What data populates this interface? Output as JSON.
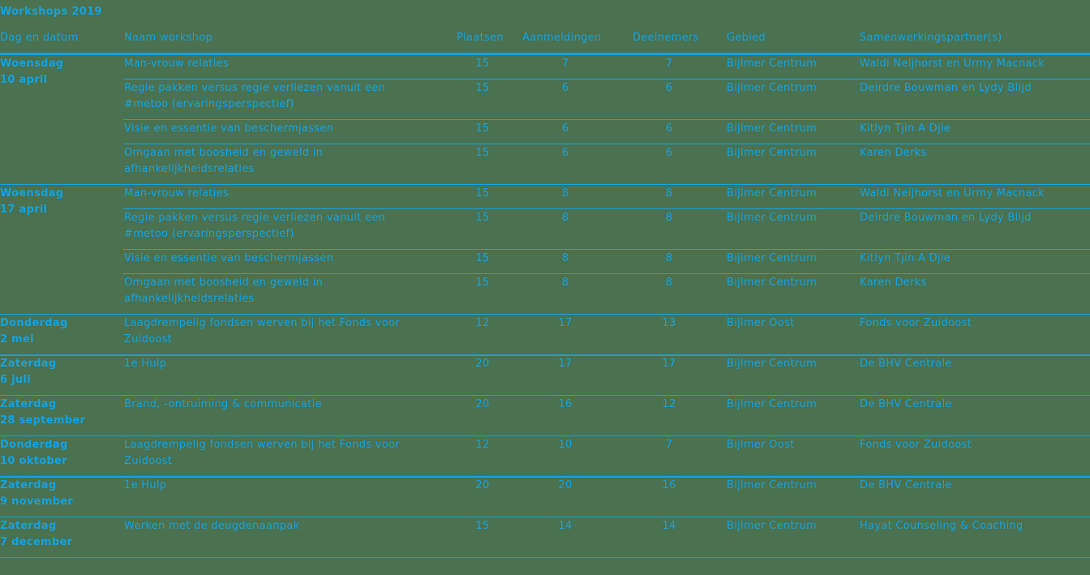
{
  "title": "Workshops 2019",
  "columns": [
    "Dag en datum",
    "Naam workshop",
    "Plaatsen",
    "Aanmeldingen",
    "Deelnemers",
    "Gebied",
    "Samenwerkingspartner(s)"
  ],
  "accent_color": "#12a3e3",
  "background_color": "#4a7150",
  "groups": [
    {
      "day": "Woensdag",
      "date": "10 april",
      "rows": [
        {
          "name": "Man-vrouw relaties",
          "plaatsen": "15",
          "aanmeldingen": "7",
          "deelnemers": "7",
          "gebied": "Bijlmer Centrum",
          "partner": "Waldi Neijhorst en Urmy Macnack"
        },
        {
          "name": "Regie pakken versus regie verliezen vanuit een #metoo (ervaringsperspectief)",
          "plaatsen": "15",
          "aanmeldingen": "6",
          "deelnemers": "6",
          "gebied": "Bijlmer Centrum",
          "partner": "Deirdre Bouwman en Lydy Blijd"
        },
        {
          "name": "Visie en essentie van beschermjassen",
          "plaatsen": "15",
          "aanmeldingen": "6",
          "deelnemers": "6",
          "gebied": "Bijlmer Centrum",
          "partner": "Kitlyn Tjin A Djie"
        },
        {
          "name": "Omgaan met boosheid en geweld in afhankelijkheidsrelaties",
          "plaatsen": "15",
          "aanmeldingen": "6",
          "deelnemers": "6",
          "gebied": "Bijlmer Centrum",
          "partner": "Karen Derks"
        }
      ]
    },
    {
      "day": "Woensdag",
      "date": "17 april",
      "rows": [
        {
          "name": "Man-vrouw relaties",
          "plaatsen": "15",
          "aanmeldingen": "8",
          "deelnemers": "8",
          "gebied": "Bijlmer Centrum",
          "partner": "Waldi Neijhorst en Urmy Macnack"
        },
        {
          "name": "Regie pakken versus regie verliezen vanuit een #metoo (ervaringsperspectief)",
          "plaatsen": "15",
          "aanmeldingen": "8",
          "deelnemers": "8",
          "gebied": "Bijlmer Centrum",
          "partner": "Deirdre Bouwman en Lydy Blijd"
        },
        {
          "name": "Visie en essentie van beschermjassen",
          "plaatsen": "15",
          "aanmeldingen": "8",
          "deelnemers": "8",
          "gebied": "Bijlmer Centrum",
          "partner": "Kitlyn Tjin A Djie"
        },
        {
          "name": "Omgaan met boosheid en geweld in afhankelijkheidsrelaties",
          "plaatsen": "15",
          "aanmeldingen": "8",
          "deelnemers": "8",
          "gebied": "Bijlmer Centrum",
          "partner": "Karen Derks"
        }
      ]
    },
    {
      "day": "Donderdag",
      "date": "2 mei",
      "rows": [
        {
          "name": "Laagdrempelig fondsen werven bij het Fonds voor Zuidoost",
          "plaatsen": "12",
          "aanmeldingen": "17",
          "deelnemers": "13",
          "gebied": "Bijlmer Oost",
          "partner": "Fonds voor Zuidoost"
        }
      ]
    },
    {
      "day": "Zaterdag",
      "date": "6 juli",
      "rows": [
        {
          "name": "1e Hulp",
          "plaatsen": "20",
          "aanmeldingen": "17",
          "deelnemers": "17",
          "gebied": "Bijlmer Centrum",
          "partner": "De BHV Centrale"
        }
      ]
    },
    {
      "day": "Zaterdag",
      "date": "28 september",
      "rows": [
        {
          "name": "Brand, -ontruiming & communicatie",
          "plaatsen": "20",
          "aanmeldingen": "16",
          "deelnemers": "12",
          "gebied": "Bijlmer Centrum",
          "partner": "De BHV Centrale"
        }
      ]
    },
    {
      "day": "Donderdag",
      "date": "10 oktober",
      "rows": [
        {
          "name": "Laagdrempelig fondsen werven bij het Fonds voor Zuidoost",
          "plaatsen": "12",
          "aanmeldingen": "10",
          "deelnemers": "7",
          "gebied": "Bijlmer Oost",
          "partner": "Fonds voor Zuidoost"
        }
      ]
    },
    {
      "day": "Zaterdag",
      "date": "9 november",
      "rows": [
        {
          "name": "1e Hulp",
          "plaatsen": "20",
          "aanmeldingen": "20",
          "deelnemers": "16",
          "gebied": "Bijlmer Centrum",
          "partner": "De BHV Centrale"
        }
      ]
    },
    {
      "day": "Zaterdag",
      "date": "7 december",
      "rows": [
        {
          "name": "Werken met de deugdenaanpak",
          "plaatsen": "15",
          "aanmeldingen": "14",
          "deelnemers": "14",
          "gebied": "Bijlmer Centrum",
          "partner": "Hayat Counseling & Coaching"
        }
      ]
    }
  ]
}
